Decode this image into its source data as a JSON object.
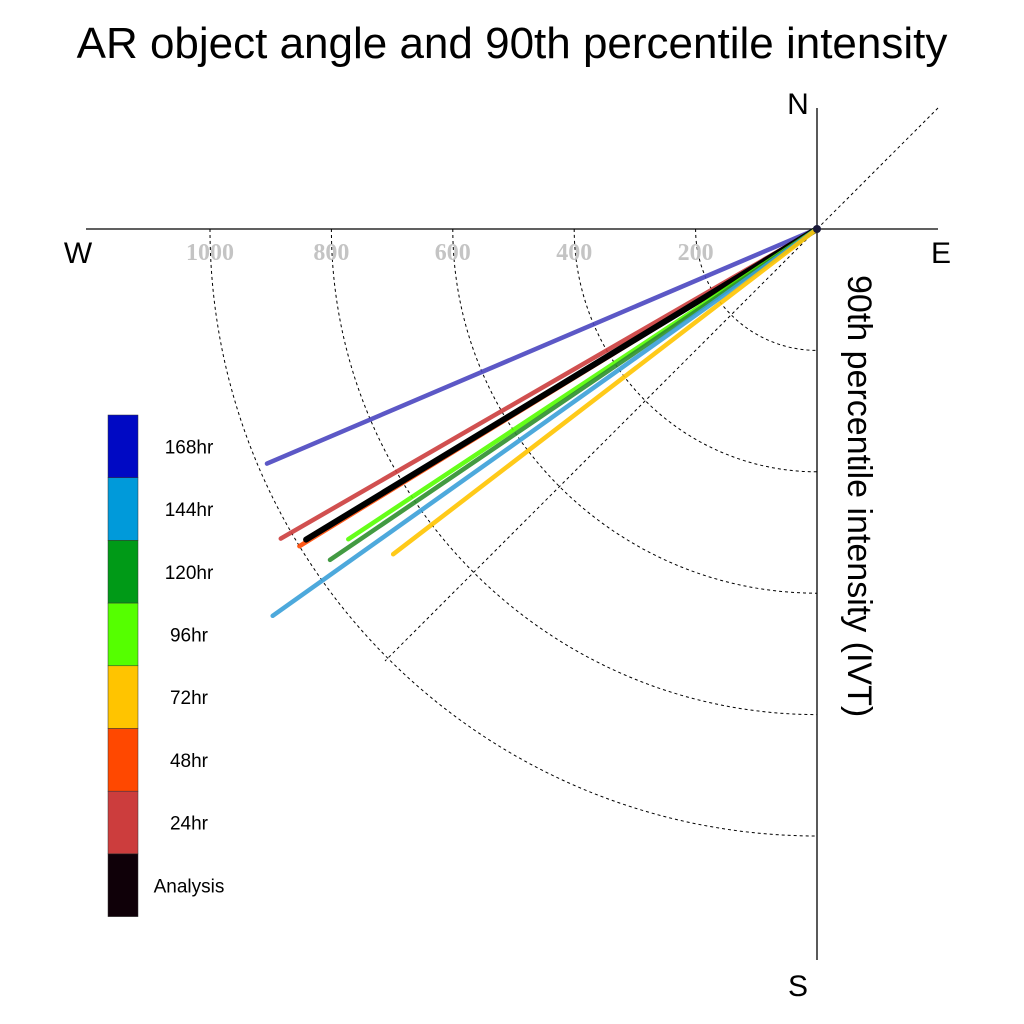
{
  "chart_data": {
    "type": "polar-line",
    "title": "AR object angle and 90th percentile intensity",
    "compass": {
      "north": "N",
      "south": "S",
      "east": "E",
      "west": "W"
    },
    "radial_axis_label": "90th percentile intensity (IVT)",
    "rings": [
      200,
      400,
      600,
      800,
      1000
    ],
    "ring_labels": [
      "200",
      "400",
      "600",
      "800",
      "1000"
    ],
    "angle_unit": "degrees counterclockwise from West (toward South)",
    "series": [
      {
        "name": "168hr",
        "color": "#4a46c0",
        "angle": 23.1,
        "intensity": 985
      },
      {
        "name": "48hr",
        "color": "#ff4800",
        "angle": 31.5,
        "intensity": 1000
      },
      {
        "name": "24hr",
        "color": "#cc3d3d",
        "angle": 30.0,
        "intensity": 1020
      },
      {
        "name": "Analysis",
        "color": "#000000",
        "angle": 31.3,
        "intensity": 985
      },
      {
        "name": "96hr",
        "color": "#55ff00",
        "angle": 33.5,
        "intensity": 926
      },
      {
        "name": "120hr",
        "color": "#2d8f2d",
        "angle": 34.2,
        "intensity": 970
      },
      {
        "name": "144hr",
        "color": "#3aa0d8",
        "angle": 35.4,
        "intensity": 1100
      },
      {
        "name": "72hr",
        "color": "#ffc400",
        "angle": 37.5,
        "intensity": 880
      }
    ],
    "legend": [
      {
        "label": "168hr",
        "color": "#0009c4"
      },
      {
        "label": "144hr",
        "color": "#009ada"
      },
      {
        "label": "120hr",
        "color": "#009a17"
      },
      {
        "label": "96hr",
        "color": "#55ff00"
      },
      {
        "label": "72hr",
        "color": "#ffc400"
      },
      {
        "label": "48hr",
        "color": "#ff4800"
      },
      {
        "label": "24hr",
        "color": "#cc3d3d"
      },
      {
        "label": "Analysis",
        "color": "#0f0008"
      }
    ],
    "legend_placement": "left"
  }
}
